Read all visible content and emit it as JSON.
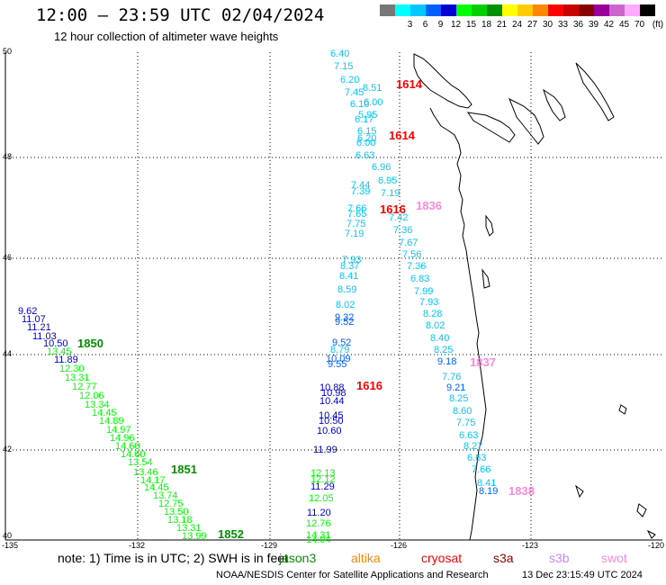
{
  "header": {
    "title": "12:00 – 23:59 UTC 02/04/2024",
    "subtitle": "12 hour collection of altimeter wave heights"
  },
  "colorbar": {
    "unit": "(ft)",
    "bins": [
      {
        "label": "",
        "color": "#777777"
      },
      {
        "label": "3",
        "color": "#00ffff"
      },
      {
        "label": "6",
        "color": "#00c8ff"
      },
      {
        "label": "9",
        "color": "#0060ff"
      },
      {
        "label": "12",
        "color": "#0000d0"
      },
      {
        "label": "15",
        "color": "#00ff00"
      },
      {
        "label": "18",
        "color": "#00d000"
      },
      {
        "label": "21",
        "color": "#009000"
      },
      {
        "label": "24",
        "color": "#ffff00"
      },
      {
        "label": "27",
        "color": "#ffcc00"
      },
      {
        "label": "30",
        "color": "#ff8800"
      },
      {
        "label": "33",
        "color": "#ff0000"
      },
      {
        "label": "36",
        "color": "#c80000"
      },
      {
        "label": "39",
        "color": "#880000"
      },
      {
        "label": "42",
        "color": "#990099"
      },
      {
        "label": "45",
        "color": "#cc66cc"
      },
      {
        "label": "70",
        "color": "#ffaaff"
      },
      {
        "label": "",
        "color": "#000000"
      }
    ]
  },
  "axes": {
    "lat_ticks": [
      "50",
      "48",
      "46",
      "44",
      "42",
      "40"
    ],
    "lon_ticks": [
      "-135",
      "-132",
      "-129",
      "-126",
      "-123",
      "-120"
    ]
  },
  "wave_heights": [
    {
      "v": "6.40",
      "c": "#00c8ff"
    },
    {
      "v": "7.15",
      "c": "#00c8ff"
    },
    {
      "v": "6.20",
      "c": "#00c8ff"
    },
    {
      "v": "7.45",
      "c": "#00c8ff"
    },
    {
      "v": "8.51",
      "c": "#00c8ff"
    },
    {
      "v": "6.10",
      "c": "#00c8ff"
    },
    {
      "v": "6.00",
      "c": "#00c8ff"
    },
    {
      "v": "5.95",
      "c": "#00c8ff"
    },
    {
      "v": "6.17",
      "c": "#00c8ff"
    },
    {
      "v": "6.15",
      "c": "#00c8ff"
    },
    {
      "v": "6.20",
      "c": "#00c8ff"
    },
    {
      "v": "6.00",
      "c": "#00c8ff"
    },
    {
      "v": "6.63",
      "c": "#00c8ff"
    },
    {
      "v": "6.96",
      "c": "#00c8ff"
    },
    {
      "v": "6.95",
      "c": "#00c8ff"
    },
    {
      "v": "7.44",
      "c": "#00c8ff"
    },
    {
      "v": "7.39",
      "c": "#00c8ff"
    },
    {
      "v": "7.19",
      "c": "#00c8ff"
    },
    {
      "v": "7.66",
      "c": "#00c8ff"
    },
    {
      "v": "7.65",
      "c": "#00c8ff"
    },
    {
      "v": "7.42",
      "c": "#00c8ff"
    },
    {
      "v": "7.75",
      "c": "#00c8ff"
    },
    {
      "v": "7.36",
      "c": "#00c8ff"
    },
    {
      "v": "7.19",
      "c": "#00c8ff"
    },
    {
      "v": "7.67",
      "c": "#00c8ff"
    },
    {
      "v": "7.56",
      "c": "#00c8ff"
    },
    {
      "v": "7.93",
      "c": "#00c8ff"
    },
    {
      "v": "8.37",
      "c": "#00c8ff"
    },
    {
      "v": "7.36",
      "c": "#00c8ff"
    },
    {
      "v": "8.41",
      "c": "#00c8ff"
    },
    {
      "v": "6.83",
      "c": "#00c8ff"
    },
    {
      "v": "8.59",
      "c": "#00c8ff"
    },
    {
      "v": "7.99",
      "c": "#00c8ff"
    },
    {
      "v": "8.02",
      "c": "#00c8ff"
    },
    {
      "v": "7.93",
      "c": "#00c8ff"
    },
    {
      "v": "8.28",
      "c": "#00c8ff"
    },
    {
      "v": "9.32",
      "c": "#0060ff"
    },
    {
      "v": "9.52",
      "c": "#0060ff"
    },
    {
      "v": "8.02",
      "c": "#00c8ff"
    },
    {
      "v": "8.40",
      "c": "#00c8ff"
    },
    {
      "v": "9.52",
      "c": "#0060ff"
    },
    {
      "v": "8.79",
      "c": "#00c8ff"
    },
    {
      "v": "8.25",
      "c": "#00c8ff"
    },
    {
      "v": "10.09",
      "c": "#0060ff"
    },
    {
      "v": "9.55",
      "c": "#0060ff"
    },
    {
      "v": "9.18",
      "c": "#0060ff"
    },
    {
      "v": "7.76",
      "c": "#00c8ff"
    },
    {
      "v": "9.21",
      "c": "#0060ff"
    },
    {
      "v": "8.25",
      "c": "#00c8ff"
    },
    {
      "v": "8.60",
      "c": "#00c8ff"
    },
    {
      "v": "7.75",
      "c": "#00c8ff"
    },
    {
      "v": "6.63",
      "c": "#00c8ff"
    },
    {
      "v": "8.27",
      "c": "#00c8ff"
    },
    {
      "v": "6.63",
      "c": "#00c8ff"
    },
    {
      "v": "7.66",
      "c": "#00c8ff"
    },
    {
      "v": "8.41",
      "c": "#00c8ff"
    },
    {
      "v": "8.19",
      "c": "#0060ff"
    },
    {
      "v": "10.88",
      "c": "#0000d0"
    },
    {
      "v": "10.98",
      "c": "#0000d0"
    },
    {
      "v": "10.44",
      "c": "#0000d0"
    },
    {
      "v": "10.45",
      "c": "#0000d0"
    },
    {
      "v": "10.50",
      "c": "#0000d0"
    },
    {
      "v": "10.60",
      "c": "#0000d0"
    },
    {
      "v": "11.99",
      "c": "#0000d0"
    },
    {
      "v": "12.13",
      "c": "#00ff00"
    },
    {
      "v": "12.12",
      "c": "#00ff00"
    },
    {
      "v": "11.29",
      "c": "#0000d0"
    },
    {
      "v": "12.05",
      "c": "#00ff00"
    },
    {
      "v": "11.20",
      "c": "#0000d0"
    },
    {
      "v": "12.76",
      "c": "#00ff00"
    },
    {
      "v": "14.31",
      "c": "#00ff00"
    },
    {
      "v": "14.04",
      "c": "#00ff00"
    },
    {
      "v": "9.62",
      "c": "#0000d0"
    },
    {
      "v": "11.07",
      "c": "#0000d0"
    },
    {
      "v": "11.21",
      "c": "#0000d0"
    },
    {
      "v": "11.03",
      "c": "#0000d0"
    },
    {
      "v": "10.50",
      "c": "#0000d0"
    },
    {
      "v": "13.45",
      "c": "#00ff00"
    },
    {
      "v": "11.89",
      "c": "#0000d0"
    },
    {
      "v": "12.30",
      "c": "#00ff00"
    },
    {
      "v": "13.31",
      "c": "#00ff00"
    },
    {
      "v": "12.77",
      "c": "#00ff00"
    },
    {
      "v": "12.06",
      "c": "#00ff00"
    },
    {
      "v": "13.34",
      "c": "#00ff00"
    },
    {
      "v": "14.45",
      "c": "#00ff00"
    },
    {
      "v": "14.89",
      "c": "#00ff00"
    },
    {
      "v": "14.97",
      "c": "#00ff00"
    },
    {
      "v": "14.96",
      "c": "#00ff00"
    },
    {
      "v": "14.60",
      "c": "#00ff00"
    },
    {
      "v": "14.60",
      "c": "#00ff00"
    },
    {
      "v": "13.54",
      "c": "#00ff00"
    },
    {
      "v": "13.46",
      "c": "#00ff00"
    },
    {
      "v": "14.17",
      "c": "#00ff00"
    },
    {
      "v": "14.45",
      "c": "#00ff00"
    },
    {
      "v": "13.74",
      "c": "#00ff00"
    },
    {
      "v": "12.75",
      "c": "#00ff00"
    },
    {
      "v": "13.50",
      "c": "#00ff00"
    },
    {
      "v": "13.18",
      "c": "#00ff00"
    },
    {
      "v": "13.31",
      "c": "#00ff00"
    },
    {
      "v": "13.99",
      "c": "#00ff00"
    }
  ],
  "track_labels": [
    {
      "v": "1614",
      "c": "#ff0000"
    },
    {
      "v": "1614",
      "c": "#ff0000"
    },
    {
      "v": "1616",
      "c": "#ff0000"
    },
    {
      "v": "1836",
      "c": "#ff88dd"
    },
    {
      "v": "1616",
      "c": "#ff0000"
    },
    {
      "v": "1837",
      "c": "#ff88dd"
    },
    {
      "v": "1838",
      "c": "#ff88dd"
    },
    {
      "v": "1850",
      "c": "#009000"
    },
    {
      "v": "1851",
      "c": "#009000"
    },
    {
      "v": "1852",
      "c": "#009000"
    }
  ],
  "legend": {
    "note": "note:  1) Time is in UTC;  2) SWH is in feet",
    "satellites": [
      {
        "name": "jason3",
        "color": "#009000"
      },
      {
        "name": "altika",
        "color": "#ff8800"
      },
      {
        "name": "cryosat",
        "color": "#ff0000"
      },
      {
        "name": "s3a",
        "color": "#880000"
      },
      {
        "name": "s3b",
        "color": "#cc88ee"
      },
      {
        "name": "swot",
        "color": "#ff88dd"
      }
    ]
  },
  "footer": {
    "credit": "NOAA/NESDIS Center for Satellite Applications and Research",
    "timestamp": "13 Dec 23:15:49 UTC 2024"
  }
}
